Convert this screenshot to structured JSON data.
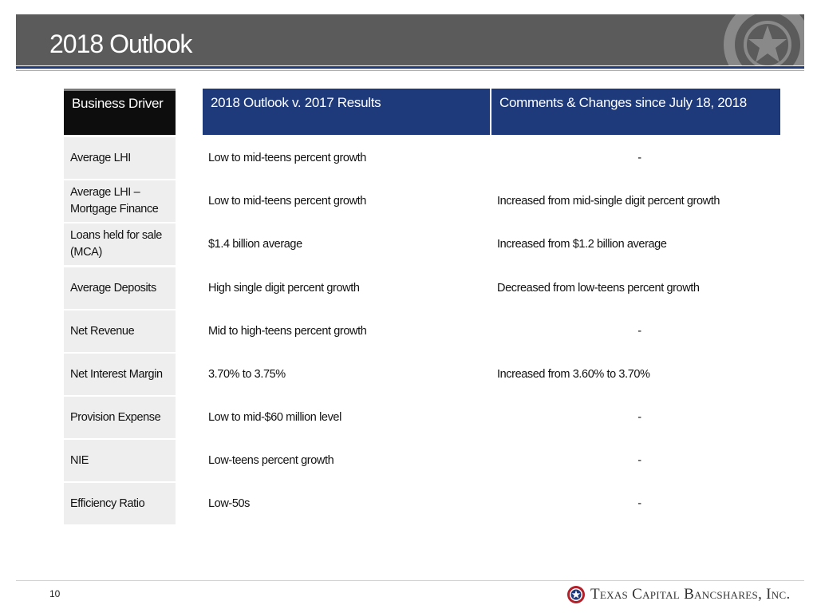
{
  "header": {
    "title": "2018 Outlook"
  },
  "table": {
    "columns": [
      "Business Driver",
      "2018 Outlook v. 2017 Results",
      "Comments & Changes since July 18, 2018"
    ],
    "rows": [
      {
        "driver": "Average LHI",
        "outlook": "Low to mid-teens percent growth",
        "comment": "-"
      },
      {
        "driver": "Average LHI – Mortgage Finance",
        "outlook": "Low to mid-teens percent growth",
        "comment": "Increased from mid-single digit percent growth"
      },
      {
        "driver": "Loans held for sale (MCA)",
        "outlook": "$1.4 billion average",
        "comment": "Increased from $1.2 billion average"
      },
      {
        "driver": "Average Deposits",
        "outlook": "High single digit percent growth",
        "comment": "Decreased from low-teens percent growth"
      },
      {
        "driver": "Net Revenue",
        "outlook": "Mid to high-teens percent growth",
        "comment": "-"
      },
      {
        "driver": "Net Interest Margin",
        "outlook": "3.70% to 3.75%",
        "comment": "Increased from 3.60% to 3.70%"
      },
      {
        "driver": "Provision Expense",
        "outlook": "Low to mid-$60 million level",
        "comment": "-"
      },
      {
        "driver": "NIE",
        "outlook": "Low-teens percent growth",
        "comment": "-"
      },
      {
        "driver": "Efficiency Ratio",
        "outlook": "Low-50s",
        "comment": "-"
      }
    ]
  },
  "footer": {
    "page_number": "10",
    "brand": "Texas Capital Bancshares, Inc."
  },
  "colors": {
    "header_bar": "#5b5b5b",
    "navy": "#1f3a7a",
    "driver_header": "#0d0d0d",
    "driver_cell": "#eeeeee"
  },
  "icons": {
    "title_watermark": "star-emblem-icon",
    "brand_logo": "star-seal-icon"
  }
}
